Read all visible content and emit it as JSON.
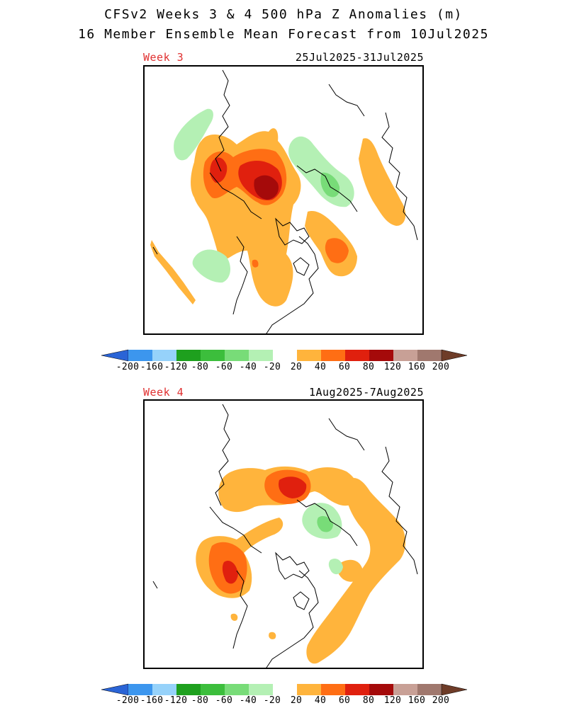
{
  "header": {
    "title_line1": "CFSv2 Weeks 3 & 4 500 hPa Z Anomalies (m)",
    "title_line2": "16 Member Ensemble Mean Forecast from 10Jul2025"
  },
  "panels": [
    {
      "label": "Week 3",
      "dates": "25Jul2025-31Jul2025"
    },
    {
      "label": "Week 4",
      "dates": "1Aug2025-7Aug2025"
    }
  ],
  "colorbar": {
    "tick_labels": [
      "-200",
      "-160",
      "-120",
      "-80",
      "-60",
      "-40",
      "-20",
      "20",
      "40",
      "60",
      "80",
      "120",
      "160",
      "200"
    ],
    "colors": {
      "lt_200": "#2a64d6",
      "m200_m160": "#3c96ee",
      "m160_m120": "#96d2fa",
      "m120_m80": "#1ea01e",
      "m80_m60": "#3cbe3c",
      "m60_m40": "#78dc78",
      "m40_m20": "#b4f0b4",
      "m20_20": "#ffffff",
      "p20_40": "#ffb43c",
      "p40_60": "#ff6e14",
      "p60_80": "#e0200e",
      "p80_120": "#a50a0a",
      "p120_160": "#c8a096",
      "p160_200": "#a0786e",
      "gt_200": "#6e3c28"
    }
  }
}
